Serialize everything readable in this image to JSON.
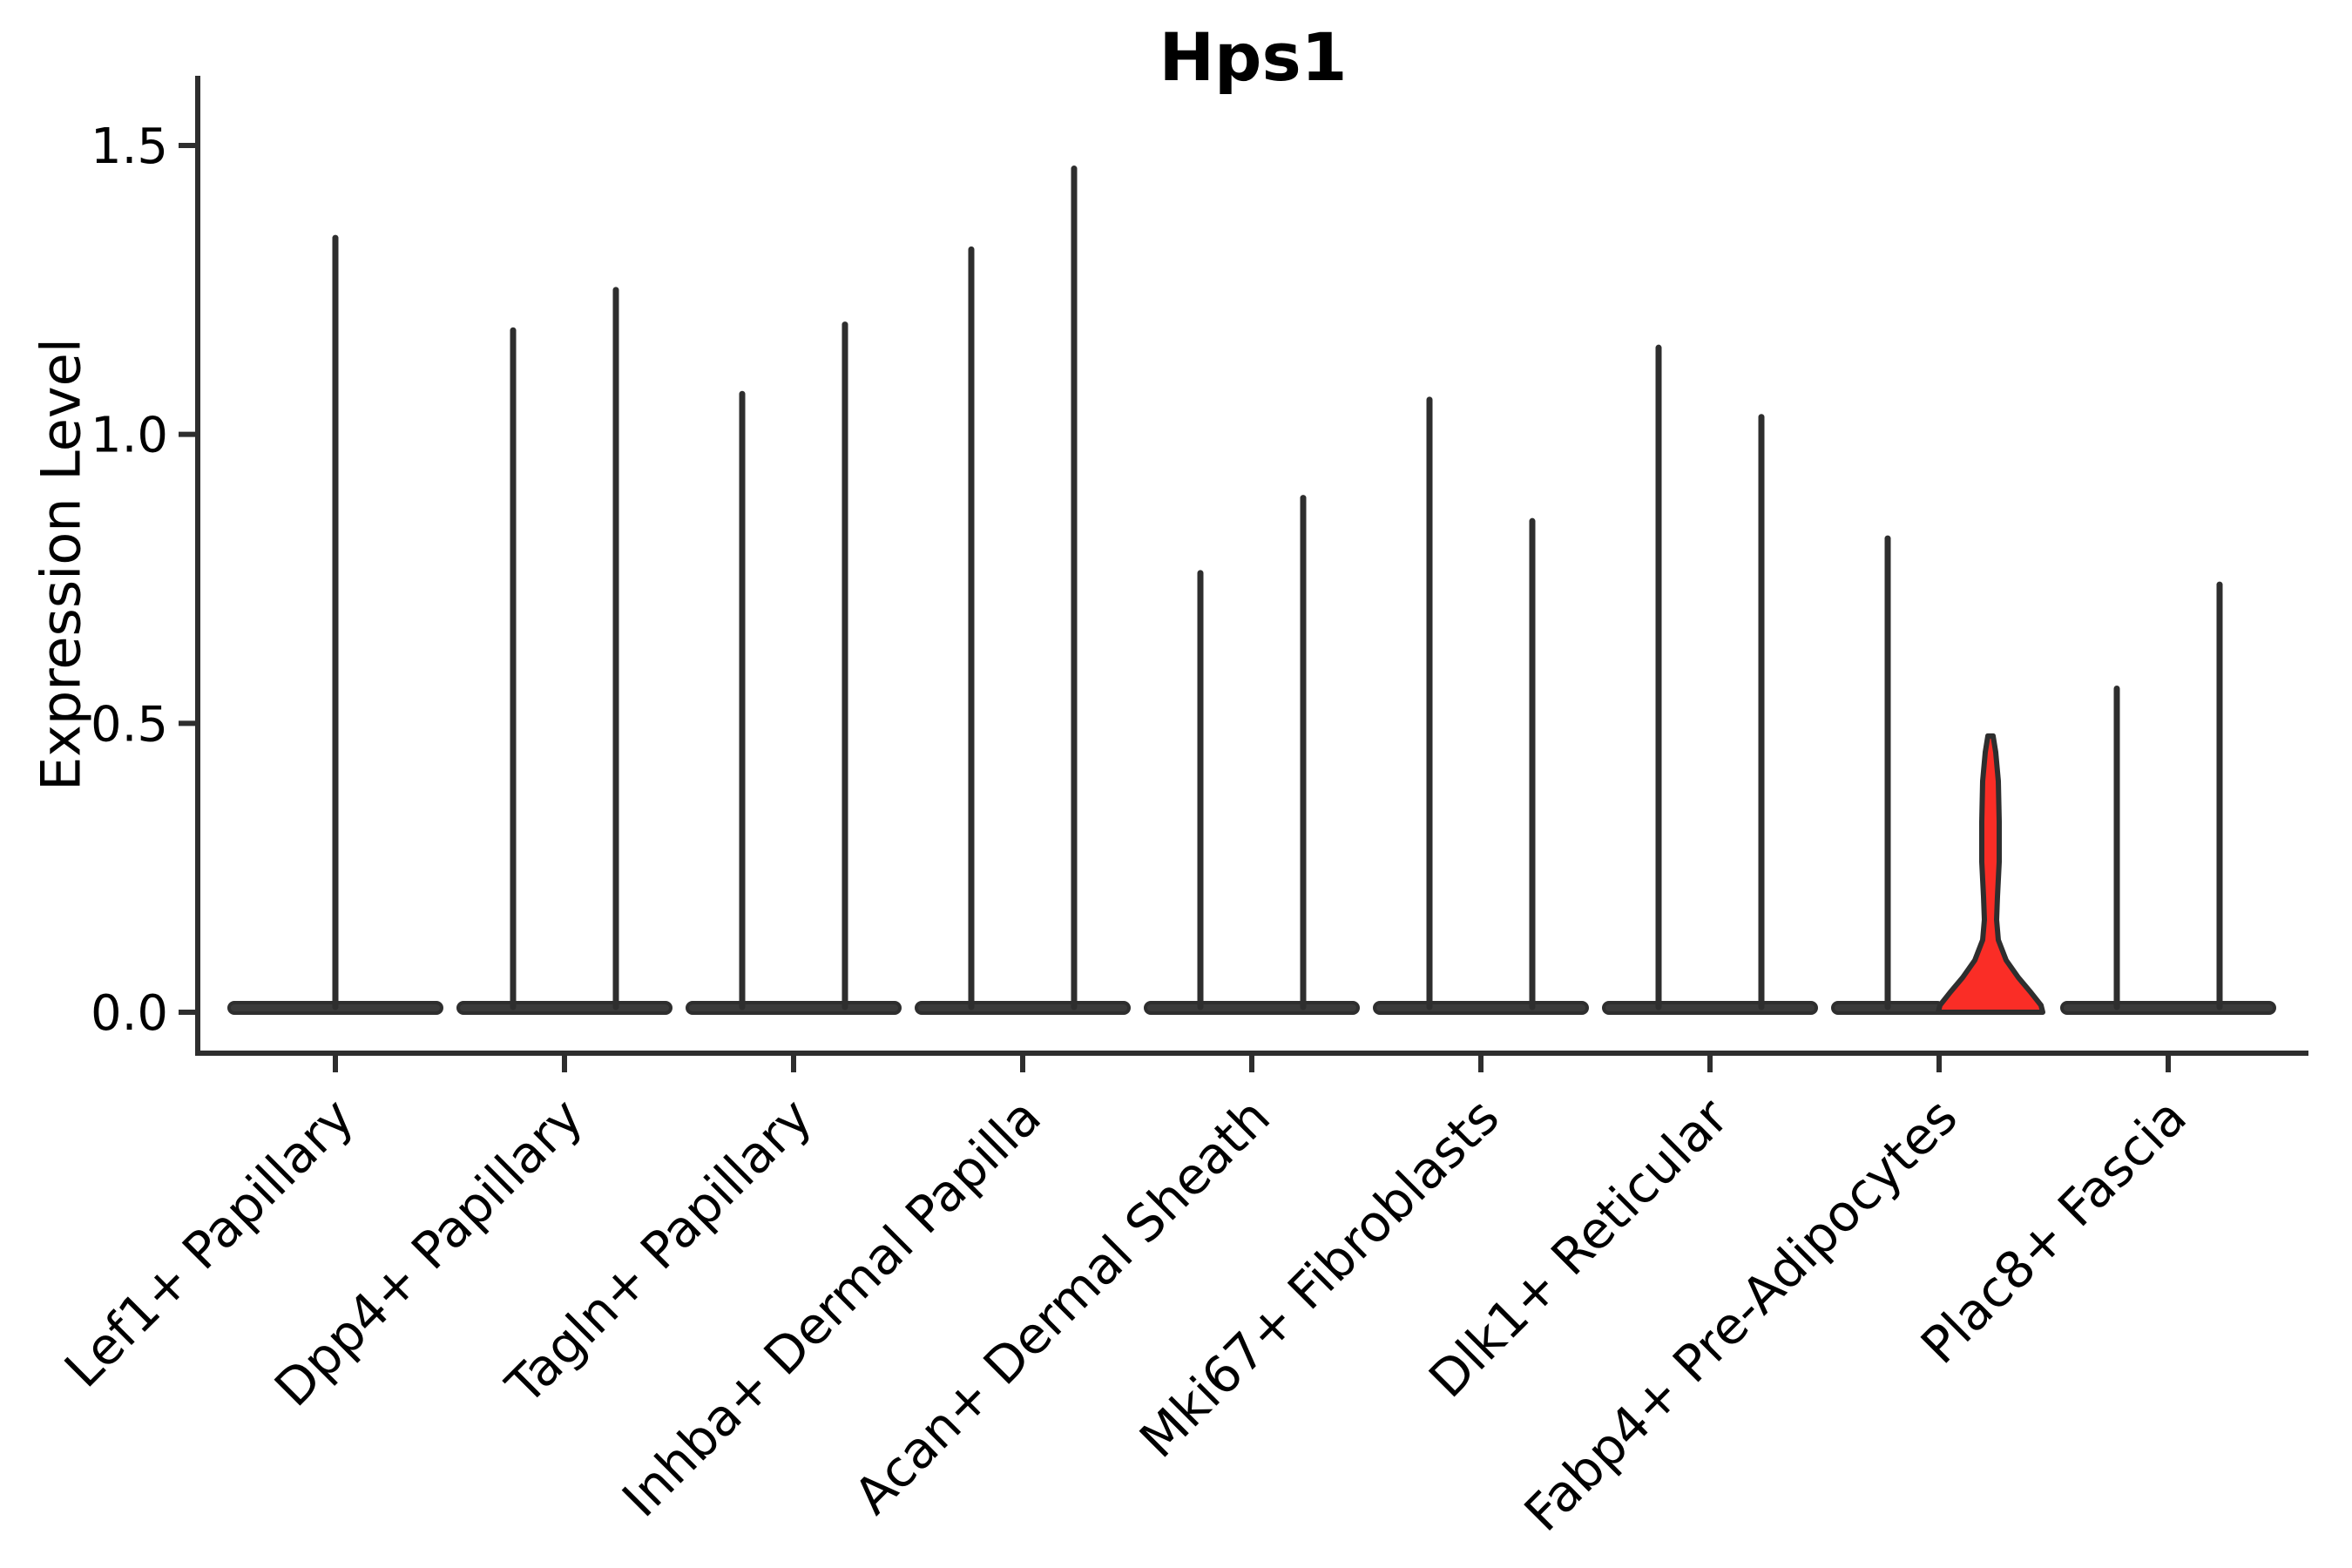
{
  "title": "Hps1",
  "y_axis": {
    "label": "Expression Level",
    "ticks": [
      "0.0",
      "0.5",
      "1.0",
      "1.5"
    ]
  },
  "colors": {
    "ink": "#2e2e2e",
    "violin_fill": "#3a3a3a",
    "highlight_red": "#fa2d26",
    "text": "#000000",
    "background": "#ffffff"
  },
  "chart_data": {
    "type": "violin",
    "title": "Hps1",
    "xlabel": "",
    "ylabel": "Expression Level",
    "ylim": [
      0,
      1.5
    ],
    "ytick_values": [
      0,
      0.5,
      1,
      1.5
    ],
    "grid": false,
    "legend": "none",
    "note": "Each category shows thin violins (expression mostly 0 with a narrow tail to max). Fabp4+ Pre-Adipocytes right violin is filled red with visible density bulge near 0.",
    "categories": [
      "Lef1+ Papillary",
      "Dpp4+ Papillary",
      "Tagln+ Papillary",
      "Inhba+ Dermal Papilla",
      "Acan+ Dermal Sheath",
      "Mki67+ Fibroblasts",
      "Dlk1+ Reticular",
      "Fabp4+ Pre-Adipocytes",
      "Plac8+ Fascia"
    ],
    "series": [
      {
        "category": "Lef1+ Papillary",
        "violins": [
          {
            "pos": 0,
            "max": 1.34
          }
        ]
      },
      {
        "category": "Dpp4+ Papillary",
        "violins": [
          {
            "pos": -1,
            "max": 1.18
          },
          {
            "pos": 1,
            "max": 1.25
          }
        ]
      },
      {
        "category": "Tagln+ Papillary",
        "violins": [
          {
            "pos": -1,
            "max": 1.07
          },
          {
            "pos": 1,
            "max": 1.19
          }
        ]
      },
      {
        "category": "Inhba+ Dermal Papilla",
        "violins": [
          {
            "pos": -1,
            "max": 1.32
          },
          {
            "pos": 1,
            "max": 1.46
          }
        ]
      },
      {
        "category": "Acan+ Dermal Sheath",
        "violins": [
          {
            "pos": -1,
            "max": 0.76
          },
          {
            "pos": 1,
            "max": 0.89
          }
        ]
      },
      {
        "category": "Mki67+ Fibroblasts",
        "violins": [
          {
            "pos": -1,
            "max": 1.06
          },
          {
            "pos": 1,
            "max": 0.85
          }
        ]
      },
      {
        "category": "Dlk1+ Reticular",
        "violins": [
          {
            "pos": -1,
            "max": 1.15
          },
          {
            "pos": 1,
            "max": 1.03
          }
        ]
      },
      {
        "category": "Fabp4+ Pre-Adipocytes",
        "violins": [
          {
            "pos": -1,
            "max": 0.82
          },
          {
            "pos": 1,
            "max": 0.48,
            "highlight": true
          }
        ]
      },
      {
        "category": "Plac8+ Fascia",
        "violins": [
          {
            "pos": -1,
            "max": 0.56
          },
          {
            "pos": 1,
            "max": 0.74
          }
        ]
      }
    ],
    "highlight_profile": [
      [
        0.478,
        3
      ],
      [
        0.45,
        6
      ],
      [
        0.4,
        9
      ],
      [
        0.33,
        10
      ],
      [
        0.26,
        10
      ],
      [
        0.2,
        8
      ],
      [
        0.16,
        7
      ],
      [
        0.125,
        9
      ],
      [
        0.09,
        18
      ],
      [
        0.06,
        32
      ],
      [
        0.035,
        46
      ],
      [
        0.012,
        58
      ],
      [
        0,
        60
      ]
    ]
  }
}
